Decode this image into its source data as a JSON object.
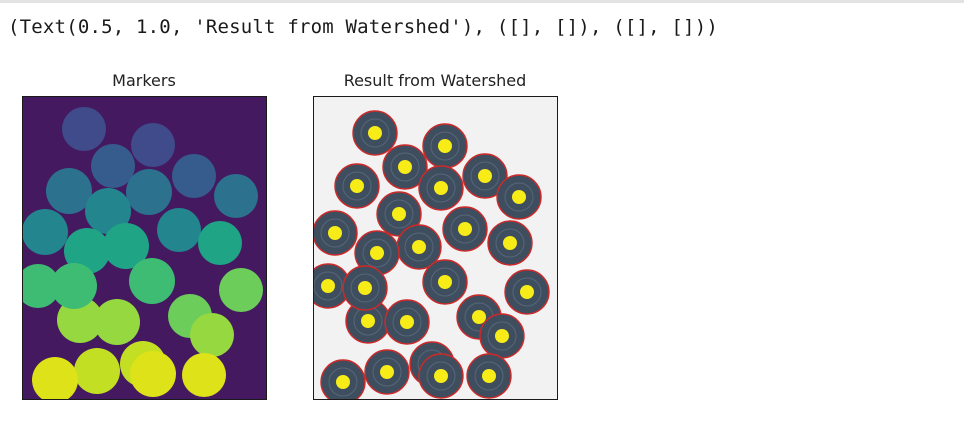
{
  "output": {
    "text": "(Text(0.5, 1.0, 'Result from Watershed'), ([], []), ([], []))"
  },
  "figures": [
    {
      "title": "Markers"
    },
    {
      "title": "Result from Watershed"
    }
  ],
  "colors": {
    "markers_background": "#44195f",
    "watershed_background": "#f1f2f1",
    "coin": "#3f4e5e",
    "coin_boundary": "#cc2a2a",
    "marker_dot": "#f7ec18",
    "frame": "#1a1a1a"
  },
  "marker_palette": [
    "#46307e",
    "#3f4b8a",
    "#365c8d",
    "#2c718e",
    "#23868f",
    "#20a486",
    "#3fbc73",
    "#6ccd5a",
    "#95d840",
    "#c2df23",
    "#dde318"
  ]
}
